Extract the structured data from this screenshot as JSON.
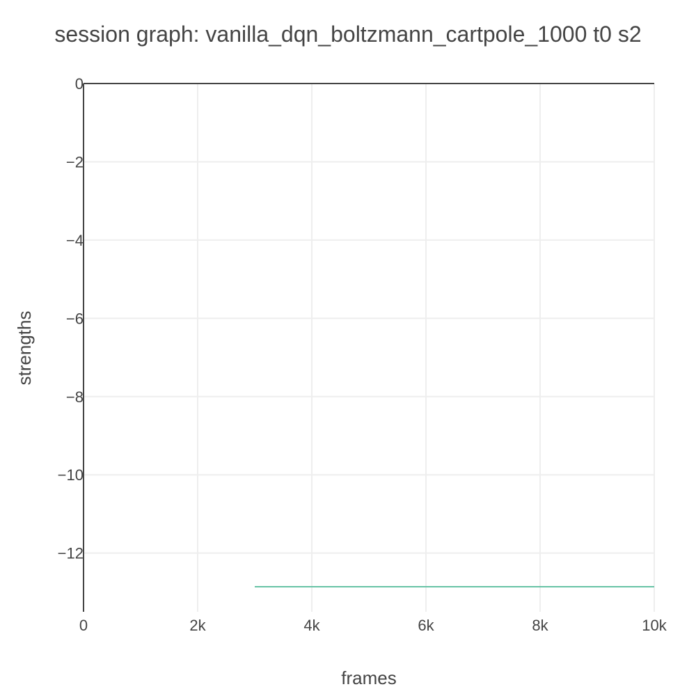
{
  "chart_data": {
    "type": "line",
    "title": "session graph: vanilla_dqn_boltzmann_cartpole_1000 t0 s2",
    "xlabel": "frames",
    "ylabel": "strengths",
    "xlim": [
      0,
      10000
    ],
    "ylim": [
      -13.5,
      0
    ],
    "x_ticks": [
      {
        "value": 0,
        "label": "0"
      },
      {
        "value": 2000,
        "label": "2k"
      },
      {
        "value": 4000,
        "label": "4k"
      },
      {
        "value": 6000,
        "label": "6k"
      },
      {
        "value": 8000,
        "label": "8k"
      },
      {
        "value": 10000,
        "label": "10k"
      }
    ],
    "y_ticks": [
      {
        "value": 0,
        "label": "0"
      },
      {
        "value": -2,
        "label": "−2"
      },
      {
        "value": -4,
        "label": "−4"
      },
      {
        "value": -6,
        "label": "−6"
      },
      {
        "value": -8,
        "label": "−8"
      },
      {
        "value": -10,
        "label": "−10"
      },
      {
        "value": -12,
        "label": "−12"
      }
    ],
    "grid": true,
    "series": [
      {
        "color": "#66c2a5",
        "x": [
          3000,
          10000
        ],
        "y": [
          -12.86,
          -12.86
        ]
      }
    ]
  }
}
